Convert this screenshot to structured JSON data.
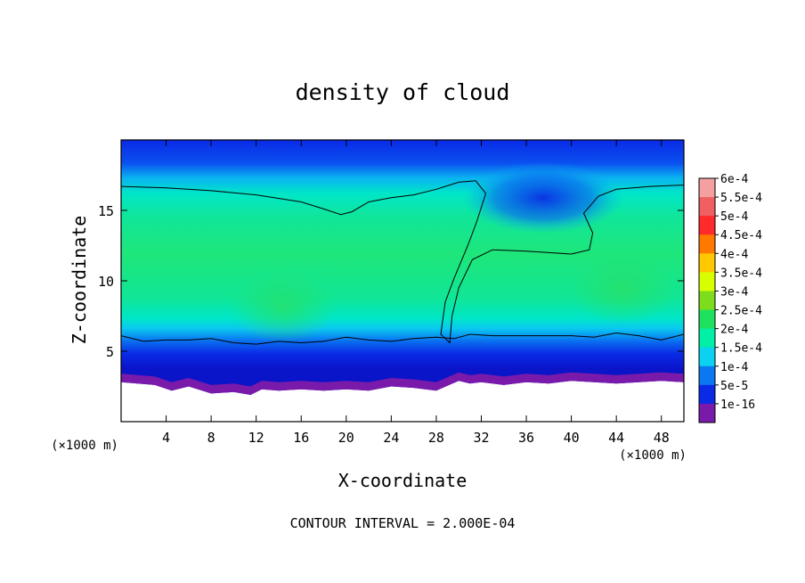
{
  "chart_data": {
    "type": "heatmap",
    "title": "density of cloud",
    "xlabel": "X-coordinate",
    "ylabel": "Z-coordinate",
    "x_unit": "(×1000 m)",
    "y_unit": "(×1000 m)",
    "xlim": [
      0,
      50
    ],
    "ylim": [
      0,
      20
    ],
    "x_ticks": [
      4,
      8,
      12,
      16,
      20,
      24,
      28,
      32,
      36,
      40,
      44,
      48
    ],
    "y_ticks": [
      5,
      10,
      15
    ],
    "footer": "CONTOUR INTERVAL = 2.000E-04",
    "contour_interval": 0.0002,
    "colorbar": [
      {
        "label": "6e-4",
        "color": "#f5a0a0"
      },
      {
        "label": "5.5e-4",
        "color": "#f06060"
      },
      {
        "label": "5e-4",
        "color": "#ff2a2a"
      },
      {
        "label": "4.5e-4",
        "color": "#ff7800"
      },
      {
        "label": "4e-4",
        "color": "#ffc800"
      },
      {
        "label": "3.5e-4",
        "color": "#d7ff00"
      },
      {
        "label": "3e-4",
        "color": "#7ddc1c"
      },
      {
        "label": "2.5e-4",
        "color": "#20e060"
      },
      {
        "label": "2e-4",
        "color": "#00f0a8"
      },
      {
        "label": "1.5e-4",
        "color": "#0ad2f0"
      },
      {
        "label": "1e-4",
        "color": "#0a78f0"
      },
      {
        "label": "5e-5",
        "color": "#0a2ae6"
      },
      {
        "label": "1e-16",
        "color": "#7a1aaa"
      }
    ],
    "contour_boundaries": {
      "upper": [
        [
          0,
          16.7
        ],
        [
          4,
          16.6
        ],
        [
          8,
          16.4
        ],
        [
          12,
          16.1
        ],
        [
          16,
          15.6
        ],
        [
          18,
          15.1
        ],
        [
          19.5,
          14.7
        ],
        [
          20.5,
          14.9
        ],
        [
          22,
          15.6
        ],
        [
          24,
          15.9
        ],
        [
          26,
          16.1
        ],
        [
          28,
          16.5
        ],
        [
          30,
          17.0
        ],
        [
          31.5,
          17.1
        ],
        [
          32.4,
          16.2
        ],
        [
          31.6,
          14.2
        ],
        [
          30.8,
          12.5
        ],
        [
          29.6,
          10.2
        ],
        [
          28.8,
          8.5
        ],
        [
          28.4,
          6.2
        ],
        [
          29.2,
          5.6
        ],
        [
          29.4,
          7.5
        ],
        [
          30,
          9.5
        ],
        [
          31.2,
          11.5
        ],
        [
          33,
          12.2
        ],
        [
          36,
          12.1
        ],
        [
          40,
          11.9
        ],
        [
          41.6,
          12.2
        ],
        [
          41.9,
          13.4
        ],
        [
          41.1,
          14.8
        ],
        [
          42.4,
          16.0
        ],
        [
          44,
          16.5
        ],
        [
          47,
          16.7
        ],
        [
          50,
          16.8
        ]
      ],
      "lower": [
        [
          0,
          6.1
        ],
        [
          2,
          5.7
        ],
        [
          4,
          5.8
        ],
        [
          6,
          5.8
        ],
        [
          8,
          5.9
        ],
        [
          10,
          5.6
        ],
        [
          12,
          5.5
        ],
        [
          14,
          5.7
        ],
        [
          16,
          5.6
        ],
        [
          18,
          5.7
        ],
        [
          20,
          6.0
        ],
        [
          22,
          5.8
        ],
        [
          24,
          5.7
        ],
        [
          26,
          5.9
        ],
        [
          28,
          6.0
        ],
        [
          29.6,
          5.9
        ],
        [
          31,
          6.2
        ],
        [
          33,
          6.1
        ],
        [
          36,
          6.1
        ],
        [
          40,
          6.1
        ],
        [
          42,
          6.0
        ],
        [
          44,
          6.3
        ],
        [
          46,
          6.1
        ],
        [
          48,
          5.8
        ],
        [
          50,
          6.2
        ]
      ],
      "cloud_base": [
        [
          0,
          2.8
        ],
        [
          3,
          2.6
        ],
        [
          4.5,
          2.2
        ],
        [
          6,
          2.5
        ],
        [
          8,
          2.0
        ],
        [
          10,
          2.1
        ],
        [
          11.5,
          1.9
        ],
        [
          12.5,
          2.3
        ],
        [
          14,
          2.2
        ],
        [
          16,
          2.3
        ],
        [
          18,
          2.2
        ],
        [
          20,
          2.3
        ],
        [
          22,
          2.2
        ],
        [
          24,
          2.5
        ],
        [
          26,
          2.4
        ],
        [
          28,
          2.2
        ],
        [
          30,
          2.9
        ],
        [
          31,
          2.7
        ],
        [
          32,
          2.8
        ],
        [
          34,
          2.6
        ],
        [
          36,
          2.8
        ],
        [
          38,
          2.7
        ],
        [
          40,
          2.9
        ],
        [
          42,
          2.8
        ],
        [
          44,
          2.7
        ],
        [
          46,
          2.8
        ],
        [
          48,
          2.9
        ],
        [
          50,
          2.8
        ]
      ]
    }
  }
}
